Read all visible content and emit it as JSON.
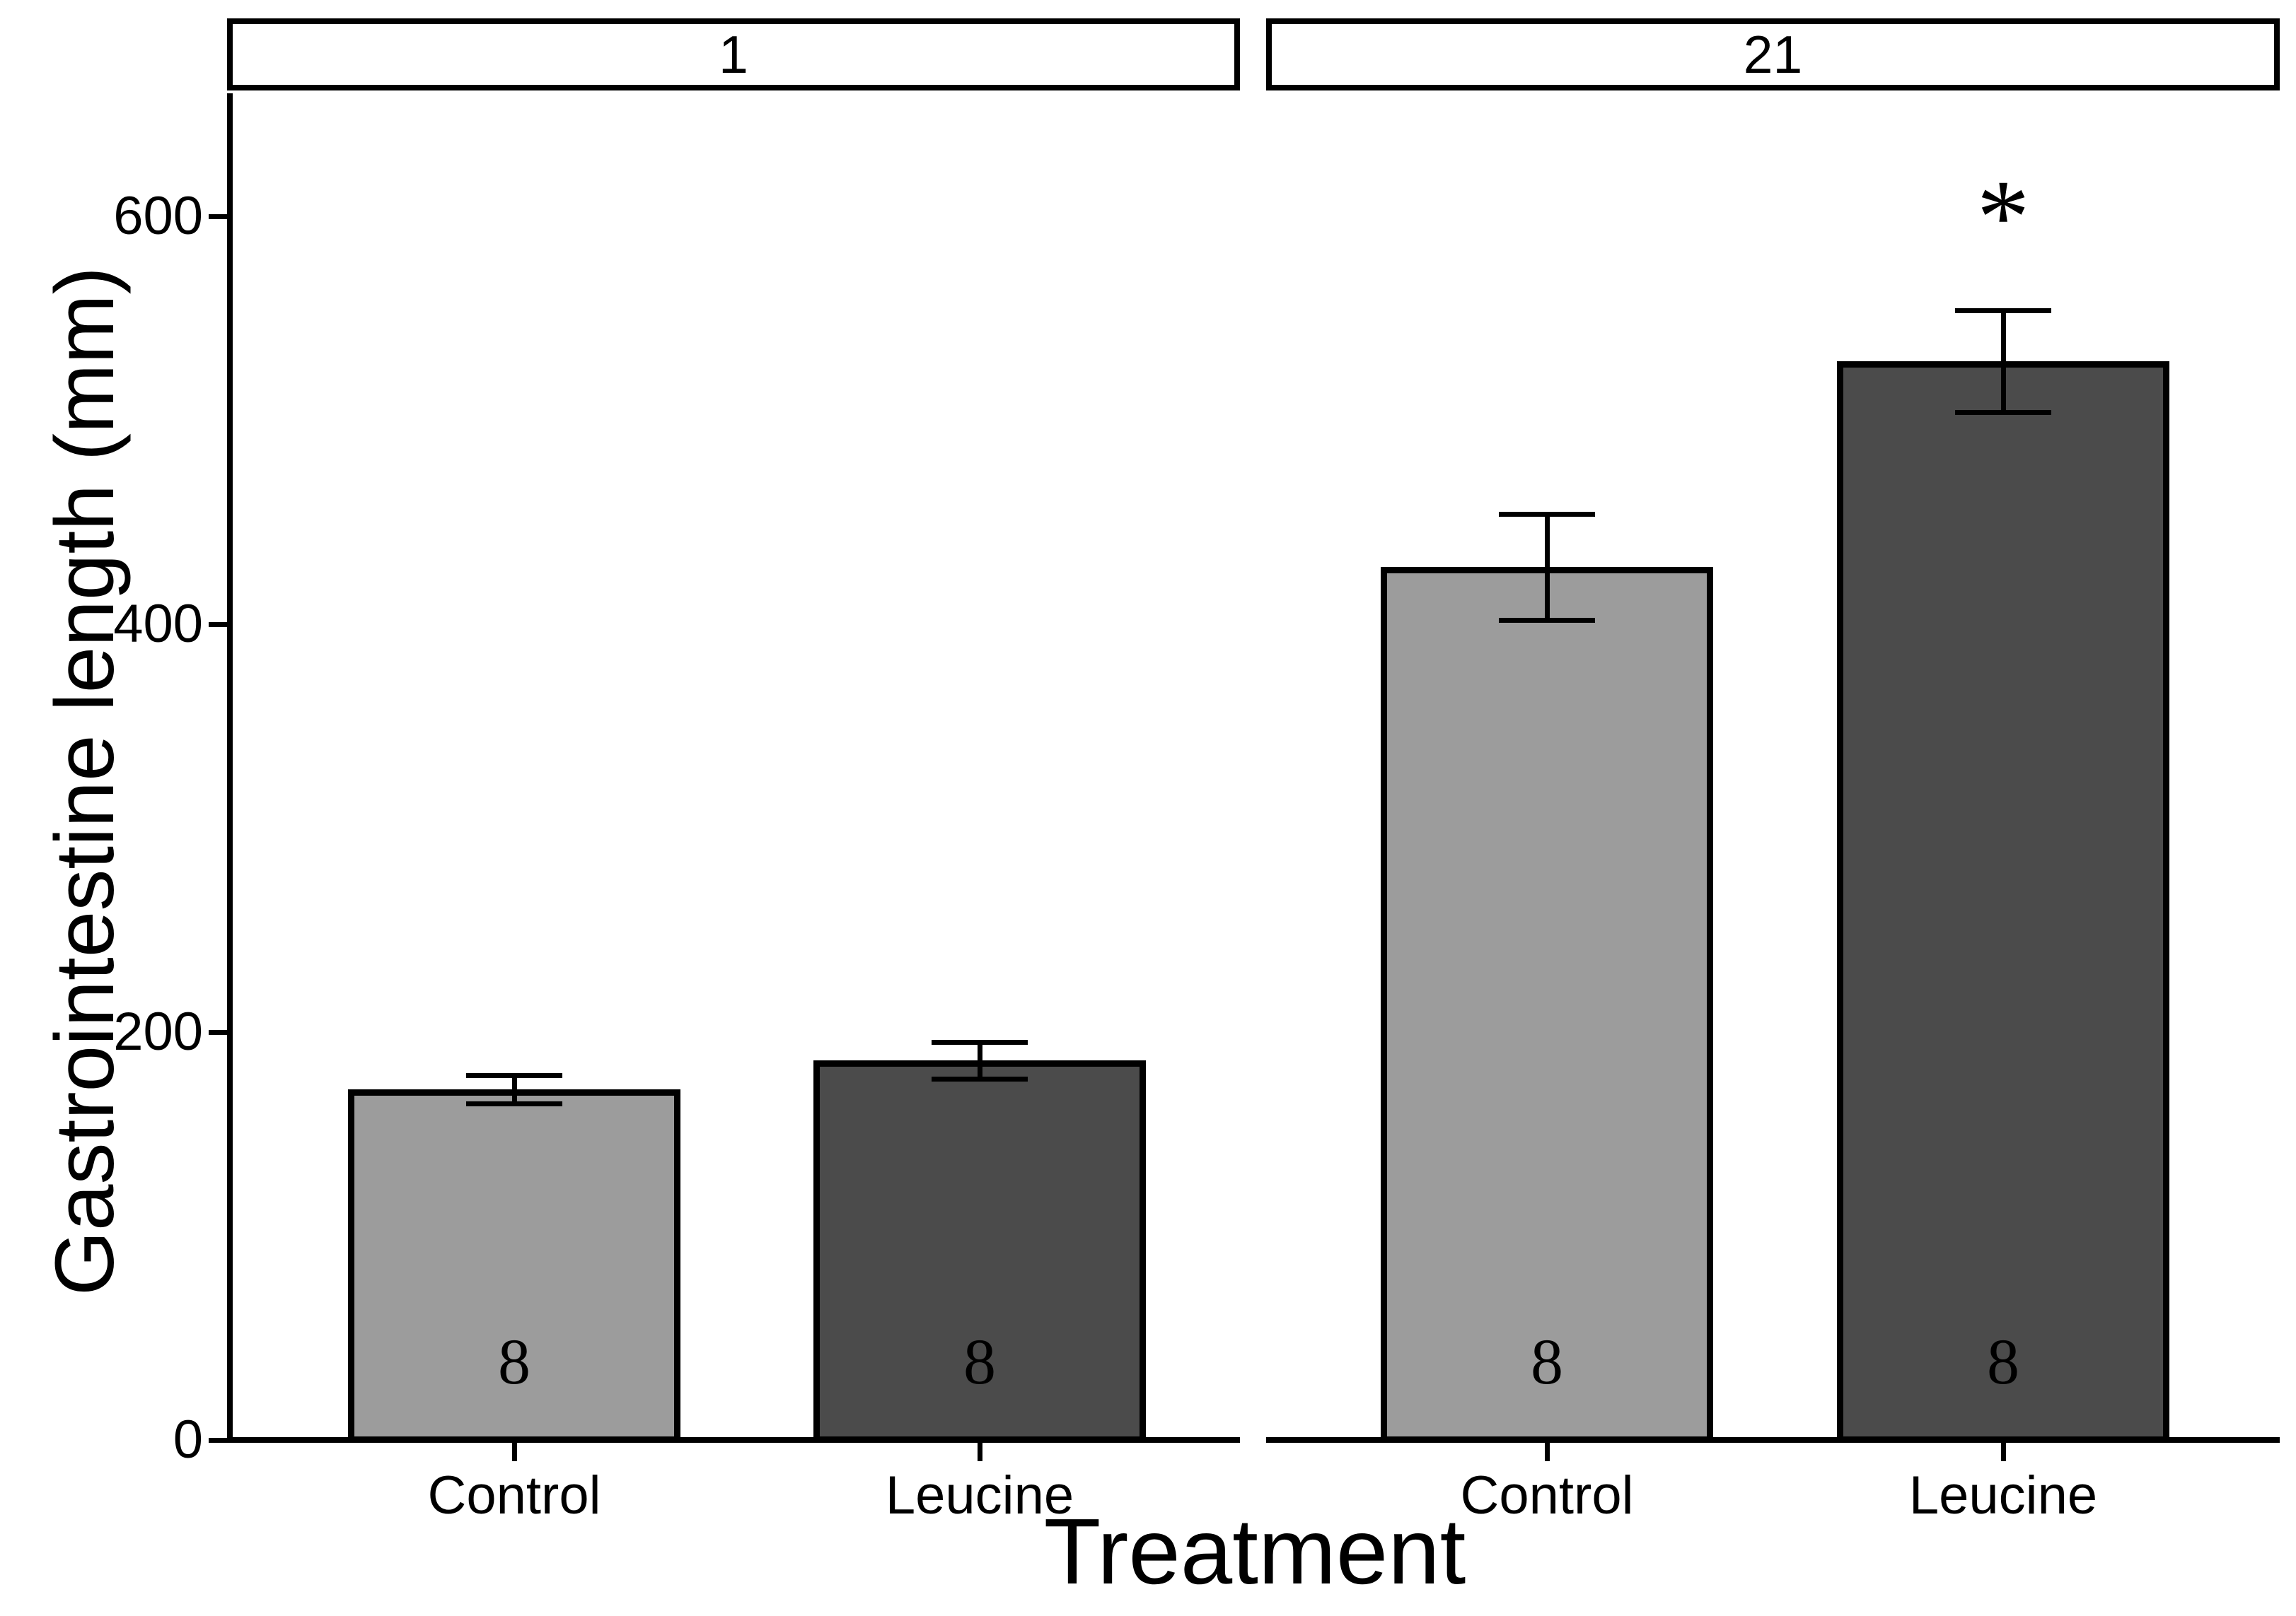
{
  "chart_data": {
    "type": "bar",
    "title": "",
    "xlabel": "Treatment",
    "ylabel": "Gastrointestine length (mm)",
    "ylim": [
      0,
      660
    ],
    "yticks": [
      0,
      200,
      400,
      600
    ],
    "grid": false,
    "legend_position": "none",
    "categories": [
      "Control",
      "Leucine"
    ],
    "facet_labels": [
      "1",
      "21"
    ],
    "facets": [
      {
        "label": "1",
        "bars": [
          {
            "category": "Control",
            "mean": 172,
            "error": 7,
            "n": 8,
            "annotation": "",
            "fill": "#9C9C9C"
          },
          {
            "category": "Leucine",
            "mean": 186,
            "error": 9,
            "n": 8,
            "annotation": "",
            "fill": "#4B4B4B"
          }
        ]
      },
      {
        "label": "21",
        "bars": [
          {
            "category": "Control",
            "mean": 428,
            "error": 26,
            "n": 8,
            "annotation": "",
            "fill": "#9C9C9C"
          },
          {
            "category": "Leucine",
            "mean": 529,
            "error": 25,
            "n": 8,
            "annotation": "*",
            "fill": "#4B4B4B"
          }
        ]
      }
    ],
    "colors": {
      "control_fill": "#9C9C9C",
      "leucine_fill": "#4B4B4B",
      "bar_outline": "#000000",
      "axis": "#000000",
      "text": "#000000",
      "background": "#ffffff"
    }
  }
}
